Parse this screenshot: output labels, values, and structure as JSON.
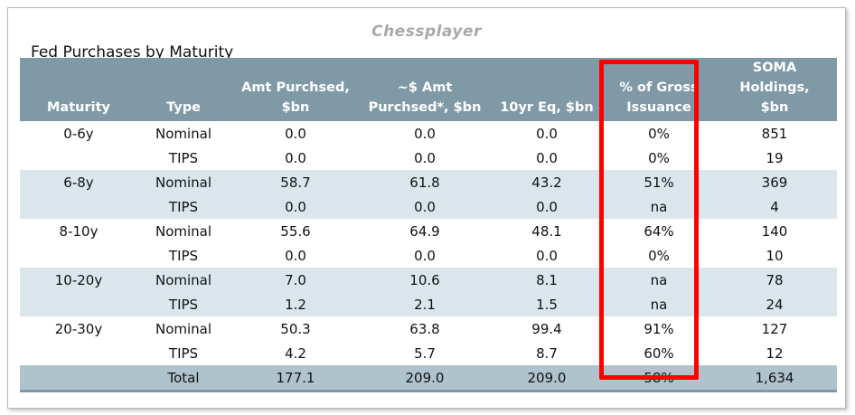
{
  "watermark": "Chessplayer",
  "title": "Fed Purchases by Maturity",
  "headers": {
    "maturity": "Maturity",
    "type": "Type",
    "amt_line1": "Amt Purchsed,",
    "amt_line2": "$bn",
    "approx_line1": "~$ Amt",
    "approx_line2": "Purchsed*, $bn",
    "eq": "10yr Eq, $bn",
    "gross_line1": "% of Gross",
    "gross_line2": "Issuance",
    "soma_line1": "SOMA Holdings,",
    "soma_line2": "$bn"
  },
  "rows": [
    {
      "maturity": "0-6y",
      "type": "Nominal",
      "amt": "0.0",
      "approx": "0.0",
      "eq": "0.0",
      "gross": "0%",
      "soma": "851"
    },
    {
      "maturity": "",
      "type": "TIPS",
      "amt": "0.0",
      "approx": "0.0",
      "eq": "0.0",
      "gross": "0%",
      "soma": "19"
    },
    {
      "maturity": "6-8y",
      "type": "Nominal",
      "amt": "58.7",
      "approx": "61.8",
      "eq": "43.2",
      "gross": "51%",
      "soma": "369"
    },
    {
      "maturity": "",
      "type": "TIPS",
      "amt": "0.0",
      "approx": "0.0",
      "eq": "0.0",
      "gross": "na",
      "soma": "4"
    },
    {
      "maturity": "8-10y",
      "type": "Nominal",
      "amt": "55.6",
      "approx": "64.9",
      "eq": "48.1",
      "gross": "64%",
      "soma": "140"
    },
    {
      "maturity": "",
      "type": "TIPS",
      "amt": "0.0",
      "approx": "0.0",
      "eq": "0.0",
      "gross": "0%",
      "soma": "10"
    },
    {
      "maturity": "10-20y",
      "type": "Nominal",
      "amt": "7.0",
      "approx": "10.6",
      "eq": "8.1",
      "gross": "na",
      "soma": "78"
    },
    {
      "maturity": "",
      "type": "TIPS",
      "amt": "1.2",
      "approx": "2.1",
      "eq": "1.5",
      "gross": "na",
      "soma": "24"
    },
    {
      "maturity": "20-30y",
      "type": "Nominal",
      "amt": "50.3",
      "approx": "63.8",
      "eq": "99.4",
      "gross": "91%",
      "soma": "127"
    },
    {
      "maturity": "",
      "type": "TIPS",
      "amt": "4.2",
      "approx": "5.7",
      "eq": "8.7",
      "gross": "60%",
      "soma": "12"
    }
  ],
  "total": {
    "maturity": "",
    "type": "Total",
    "amt": "177.1",
    "approx": "209.0",
    "eq": "209.0",
    "gross": "58%",
    "soma": "1,634"
  },
  "colors": {
    "header_bg": "#7f9aa6",
    "shade_bg": "#dae6ec",
    "total_bg": "#afc3cc",
    "highlight_border": "#ff0000"
  }
}
